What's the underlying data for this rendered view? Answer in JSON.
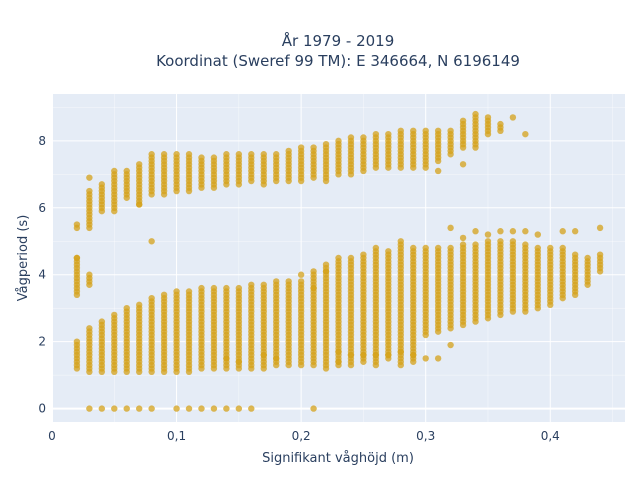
{
  "chart_data": {
    "type": "scatter",
    "title_lines": [
      "År 1979 - 2019",
      "Koordinat (Sweref 99 TM): E 346664, N 6196149"
    ],
    "xlabel": "Signifikant våghöjd (m)",
    "ylabel": "Vågperiod (s)",
    "xlim": [
      0,
      0.46
    ],
    "ylim": [
      -0.4,
      9.4
    ],
    "x_ticks": [
      0,
      0.1,
      0.2,
      0.3,
      0.4
    ],
    "x_tick_labels": [
      "0",
      "0,1",
      "0,2",
      "0,3",
      "0,4"
    ],
    "y_ticks": [
      0,
      2,
      4,
      6,
      8
    ],
    "y_tick_labels": [
      "0",
      "2",
      "4",
      "6",
      "8"
    ],
    "grid": true,
    "colors": {
      "plot_bg": "#e5ecf6",
      "grid": "#ffffff",
      "marker": "#d4a21a"
    },
    "point_step": 0.1,
    "zero_period_x": [
      0.03,
      0.04,
      0.05,
      0.06,
      0.07,
      0.08,
      0.1,
      0.11,
      0.12,
      0.13,
      0.14,
      0.15,
      0.16,
      0.21
    ],
    "column_ranges": [
      {
        "x": 0.02,
        "ranges": [
          [
            1.2,
            2.0
          ],
          [
            3.4,
            4.5
          ],
          [
            5.4,
            5.5
          ]
        ]
      },
      {
        "x": 0.03,
        "ranges": [
          [
            1.1,
            2.4
          ],
          [
            3.7,
            4.0
          ],
          [
            5.4,
            6.5
          ]
        ]
      },
      {
        "x": 0.04,
        "ranges": [
          [
            1.1,
            2.6
          ],
          [
            5.9,
            6.7
          ]
        ]
      },
      {
        "x": 0.05,
        "ranges": [
          [
            1.1,
            2.8
          ],
          [
            5.9,
            7.1
          ]
        ]
      },
      {
        "x": 0.06,
        "ranges": [
          [
            1.1,
            3.0
          ],
          [
            6.3,
            7.1
          ]
        ]
      },
      {
        "x": 0.07,
        "ranges": [
          [
            1.1,
            3.1
          ],
          [
            6.1,
            7.3
          ]
        ]
      },
      {
        "x": 0.08,
        "ranges": [
          [
            1.1,
            3.3
          ],
          [
            6.4,
            7.6
          ]
        ]
      },
      {
        "x": 0.09,
        "ranges": [
          [
            1.1,
            3.4
          ],
          [
            6.4,
            7.6
          ]
        ]
      },
      {
        "x": 0.1,
        "ranges": [
          [
            1.1,
            3.5
          ],
          [
            6.5,
            7.6
          ]
        ]
      },
      {
        "x": 0.11,
        "ranges": [
          [
            1.1,
            3.5
          ],
          [
            6.5,
            7.6
          ]
        ]
      },
      {
        "x": 0.12,
        "ranges": [
          [
            1.2,
            3.6
          ],
          [
            6.6,
            7.5
          ]
        ]
      },
      {
        "x": 0.13,
        "ranges": [
          [
            1.2,
            3.6
          ],
          [
            6.6,
            7.5
          ]
        ]
      },
      {
        "x": 0.14,
        "ranges": [
          [
            1.2,
            3.6
          ],
          [
            6.7,
            7.6
          ]
        ]
      },
      {
        "x": 0.15,
        "ranges": [
          [
            1.2,
            3.6
          ],
          [
            6.7,
            7.6
          ]
        ]
      },
      {
        "x": 0.16,
        "ranges": [
          [
            1.2,
            3.7
          ],
          [
            6.8,
            7.6
          ]
        ]
      },
      {
        "x": 0.17,
        "ranges": [
          [
            1.2,
            3.7
          ],
          [
            6.7,
            7.6
          ]
        ]
      },
      {
        "x": 0.18,
        "ranges": [
          [
            1.3,
            3.8
          ],
          [
            6.8,
            7.6
          ]
        ]
      },
      {
        "x": 0.19,
        "ranges": [
          [
            1.3,
            3.8
          ],
          [
            6.8,
            7.7
          ]
        ]
      },
      {
        "x": 0.2,
        "ranges": [
          [
            1.3,
            3.8
          ],
          [
            6.8,
            7.8
          ]
        ]
      },
      {
        "x": 0.21,
        "ranges": [
          [
            1.3,
            4.1
          ],
          [
            6.9,
            7.8
          ]
        ]
      },
      {
        "x": 0.22,
        "ranges": [
          [
            1.2,
            4.3
          ],
          [
            6.9,
            7.9
          ]
        ]
      },
      {
        "x": 0.23,
        "ranges": [
          [
            1.3,
            4.5
          ],
          [
            7.0,
            8.0
          ]
        ]
      },
      {
        "x": 0.24,
        "ranges": [
          [
            1.3,
            4.5
          ],
          [
            7.0,
            8.1
          ]
        ]
      },
      {
        "x": 0.25,
        "ranges": [
          [
            1.4,
            4.6
          ],
          [
            7.1,
            8.1
          ]
        ]
      },
      {
        "x": 0.26,
        "ranges": [
          [
            1.3,
            4.8
          ],
          [
            7.2,
            8.2
          ]
        ]
      },
      {
        "x": 0.27,
        "ranges": [
          [
            1.5,
            4.7
          ],
          [
            7.2,
            8.2
          ]
        ]
      },
      {
        "x": 0.28,
        "ranges": [
          [
            1.3,
            4.9
          ],
          [
            7.2,
            8.3
          ]
        ]
      },
      {
        "x": 0.29,
        "ranges": [
          [
            1.4,
            4.8
          ],
          [
            7.2,
            8.3
          ]
        ]
      },
      {
        "x": 0.3,
        "ranges": [
          [
            2.2,
            4.8
          ],
          [
            7.2,
            8.3
          ]
        ]
      },
      {
        "x": 0.31,
        "ranges": [
          [
            2.3,
            4.8
          ],
          [
            7.4,
            8.3
          ]
        ]
      },
      {
        "x": 0.32,
        "ranges": [
          [
            2.4,
            4.8
          ],
          [
            7.6,
            8.3
          ]
        ]
      },
      {
        "x": 0.33,
        "ranges": [
          [
            2.5,
            4.9
          ],
          [
            7.8,
            8.6
          ]
        ]
      },
      {
        "x": 0.34,
        "ranges": [
          [
            2.6,
            4.9
          ],
          [
            7.8,
            8.8
          ]
        ]
      },
      {
        "x": 0.35,
        "ranges": [
          [
            2.7,
            5.0
          ],
          [
            8.2,
            8.7
          ]
        ]
      },
      {
        "x": 0.36,
        "ranges": [
          [
            2.8,
            5.0
          ],
          [
            8.3,
            8.5
          ]
        ]
      },
      {
        "x": 0.37,
        "ranges": [
          [
            2.9,
            5.0
          ]
        ]
      },
      {
        "x": 0.38,
        "ranges": [
          [
            2.9,
            4.9
          ]
        ]
      },
      {
        "x": 0.39,
        "ranges": [
          [
            3.0,
            4.8
          ]
        ]
      },
      {
        "x": 0.4,
        "ranges": [
          [
            3.1,
            4.8
          ]
        ]
      },
      {
        "x": 0.41,
        "ranges": [
          [
            3.3,
            4.8
          ]
        ]
      },
      {
        "x": 0.42,
        "ranges": [
          [
            3.4,
            4.6
          ]
        ]
      },
      {
        "x": 0.43,
        "ranges": [
          [
            3.7,
            4.5
          ]
        ]
      },
      {
        "x": 0.44,
        "ranges": [
          [
            4.1,
            4.6
          ]
        ]
      }
    ],
    "extra_points": [
      [
        0.02,
        4.5
      ],
      [
        0.03,
        6.9
      ],
      [
        0.07,
        6.1
      ],
      [
        0.08,
        5.0
      ],
      [
        0.14,
        1.5
      ],
      [
        0.15,
        1.4
      ],
      [
        0.17,
        1.6
      ],
      [
        0.18,
        1.5
      ],
      [
        0.2,
        4.0
      ],
      [
        0.21,
        3.6
      ],
      [
        0.22,
        4.1
      ],
      [
        0.23,
        1.4
      ],
      [
        0.23,
        1.7
      ],
      [
        0.24,
        1.6
      ],
      [
        0.25,
        1.6
      ],
      [
        0.26,
        1.6
      ],
      [
        0.27,
        1.6
      ],
      [
        0.28,
        5.0
      ],
      [
        0.28,
        1.7
      ],
      [
        0.29,
        1.6
      ],
      [
        0.3,
        1.5
      ],
      [
        0.31,
        1.5
      ],
      [
        0.32,
        5.4
      ],
      [
        0.32,
        1.9
      ],
      [
        0.33,
        5.1
      ],
      [
        0.34,
        5.3
      ],
      [
        0.35,
        5.2
      ],
      [
        0.36,
        5.3
      ],
      [
        0.37,
        5.3
      ],
      [
        0.38,
        5.3
      ],
      [
        0.39,
        5.2
      ],
      [
        0.41,
        5.3
      ],
      [
        0.42,
        5.3
      ],
      [
        0.44,
        5.4
      ],
      [
        0.38,
        8.2
      ],
      [
        0.37,
        8.7
      ],
      [
        0.31,
        7.1
      ],
      [
        0.33,
        7.3
      ],
      [
        0.22,
        6.8
      ]
    ]
  }
}
